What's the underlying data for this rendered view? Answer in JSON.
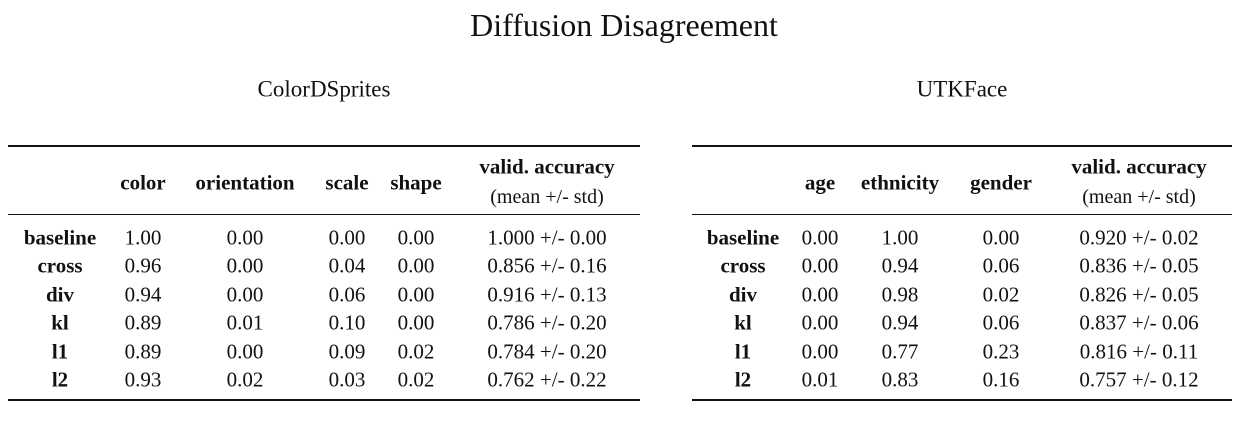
{
  "title": "Diffusion Disagreement",
  "tables": [
    {
      "title": "ColorDSprites",
      "columns": [
        "color",
        "orientation",
        "scale",
        "shape"
      ],
      "accuracy_header": "valid. accuracy",
      "accuracy_subheader": "(mean +/- std)",
      "rows": [
        {
          "label": "baseline",
          "cells": [
            "1.00",
            "0.00",
            "0.00",
            "0.00",
            "1.000 +/- 0.00"
          ]
        },
        {
          "label": "cross",
          "cells": [
            "0.96",
            "0.00",
            "0.04",
            "0.00",
            "0.856 +/- 0.16"
          ]
        },
        {
          "label": "div",
          "cells": [
            "0.94",
            "0.00",
            "0.06",
            "0.00",
            "0.916 +/- 0.13"
          ]
        },
        {
          "label": "kl",
          "cells": [
            "0.89",
            "0.01",
            "0.10",
            "0.00",
            "0.786 +/- 0.20"
          ]
        },
        {
          "label": "l1",
          "cells": [
            "0.89",
            "0.00",
            "0.09",
            "0.02",
            "0.784 +/- 0.20"
          ]
        },
        {
          "label": "l2",
          "cells": [
            "0.93",
            "0.02",
            "0.03",
            "0.02",
            "0.762 +/- 0.22"
          ]
        }
      ]
    },
    {
      "title": "UTKFace",
      "columns": [
        "age",
        "ethnicity",
        "gender"
      ],
      "accuracy_header": "valid. accuracy",
      "accuracy_subheader": "(mean +/- std)",
      "rows": [
        {
          "label": "baseline",
          "cells": [
            "0.00",
            "1.00",
            "0.00",
            "0.920 +/- 0.02"
          ]
        },
        {
          "label": "cross",
          "cells": [
            "0.00",
            "0.94",
            "0.06",
            "0.836 +/- 0.05"
          ]
        },
        {
          "label": "div",
          "cells": [
            "0.00",
            "0.98",
            "0.02",
            "0.826 +/- 0.05"
          ]
        },
        {
          "label": "kl",
          "cells": [
            "0.00",
            "0.94",
            "0.06",
            "0.837 +/- 0.06"
          ]
        },
        {
          "label": "l1",
          "cells": [
            "0.00",
            "0.77",
            "0.23",
            "0.816 +/- 0.11"
          ]
        },
        {
          "label": "l2",
          "cells": [
            "0.01",
            "0.83",
            "0.16",
            "0.757 +/- 0.12"
          ]
        }
      ]
    }
  ]
}
